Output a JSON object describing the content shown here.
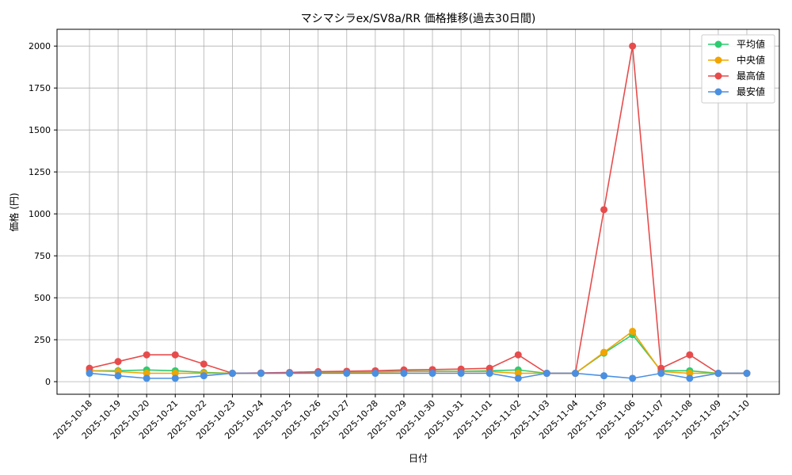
{
  "chart_data": {
    "type": "line",
    "title": "マシマシラex/SV8a/RR 価格推移(過去30日間)",
    "xlabel": "日付",
    "ylabel": "価格 (円)",
    "categories": [
      "2025-10-18",
      "2025-10-19",
      "2025-10-20",
      "2025-10-21",
      "2025-10-22",
      "2025-10-23",
      "2025-10-24",
      "2025-10-25",
      "2025-10-26",
      "2025-10-27",
      "2025-10-28",
      "2025-10-29",
      "2025-10-30",
      "2025-10-31",
      "2025-11-01",
      "2025-11-02",
      "2025-11-03",
      "2025-11-04",
      "2025-11-05",
      "2025-11-06",
      "2025-11-07",
      "2025-11-08",
      "2025-11-09",
      "2025-11-10"
    ],
    "ylim": [
      -75,
      2100
    ],
    "yticks": [
      0,
      250,
      500,
      750,
      1000,
      1250,
      1500,
      1750,
      2000
    ],
    "grid": true,
    "legend_position": "top-right",
    "series": [
      {
        "name": "平均値",
        "color": "#2ecc71",
        "values": [
          65,
          65,
          70,
          65,
          55,
          50,
          50,
          52,
          55,
          58,
          60,
          62,
          62,
          62,
          65,
          70,
          50,
          50,
          170,
          280,
          65,
          65,
          50,
          50
        ]
      },
      {
        "name": "中央値",
        "color": "#f0a500",
        "values": [
          65,
          60,
          50,
          50,
          50,
          50,
          50,
          50,
          52,
          55,
          57,
          60,
          60,
          60,
          60,
          50,
          50,
          50,
          175,
          300,
          60,
          50,
          50,
          50
        ]
      },
      {
        "name": "最高値",
        "color": "#e74c4c",
        "values": [
          80,
          120,
          160,
          160,
          105,
          50,
          52,
          55,
          60,
          62,
          65,
          70,
          72,
          75,
          80,
          160,
          50,
          50,
          1025,
          2000,
          80,
          160,
          50,
          50
        ]
      },
      {
        "name": "最安値",
        "color": "#4a90e2",
        "values": [
          50,
          35,
          20,
          20,
          35,
          50,
          50,
          50,
          50,
          50,
          50,
          50,
          50,
          50,
          50,
          20,
          50,
          50,
          35,
          20,
          50,
          20,
          50,
          50
        ]
      }
    ]
  }
}
